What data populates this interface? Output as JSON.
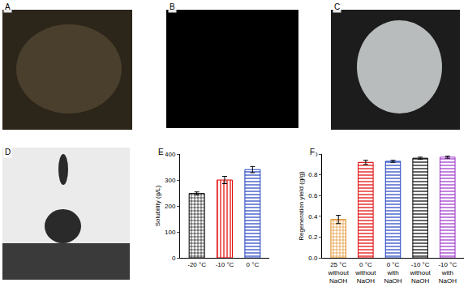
{
  "panel_labels": [
    "A",
    "B",
    "C",
    "D",
    "E",
    "F"
  ],
  "chart_data": [
    {
      "type": "bar",
      "categories": [
        "-20 °C",
        "-10 °C",
        "0 °C"
      ],
      "values": [
        248,
        300,
        340
      ],
      "errors": [
        6,
        14,
        12
      ],
      "colors": [
        "#000000",
        "#e00000",
        "#1f3fbf"
      ],
      "y_label": "Solubility (g/L)",
      "ylim": [
        0,
        400
      ],
      "yticks": [
        0,
        100,
        200,
        300,
        400
      ],
      "grid": false
    },
    {
      "type": "bar",
      "categories": [
        "25 °C\nwithout\nNaOH",
        "0 °C\nwithout\nNaOH",
        "0 °C\nwith\nNaOH",
        "-10 °C\nwithout\nNaOH",
        "-10 °C\nwith\nNaOH"
      ],
      "values": [
        0.37,
        0.92,
        0.93,
        0.96,
        0.97
      ],
      "errors": [
        0.04,
        0.02,
        0.01,
        0.01,
        0.01
      ],
      "colors": [
        "#e08a1e",
        "#e00000",
        "#1f3fbf",
        "#000000",
        "#9b30c8"
      ],
      "y_label": "Regeneration yield (g/g)",
      "ylim": [
        0,
        1.0
      ],
      "yticks": [
        {
          "value": 0,
          "label": "0.0"
        },
        0.2,
        0.4,
        0.6,
        0.8,
        {
          "value": 1,
          "label": "1.0"
        }
      ],
      "grid": false
    }
  ]
}
